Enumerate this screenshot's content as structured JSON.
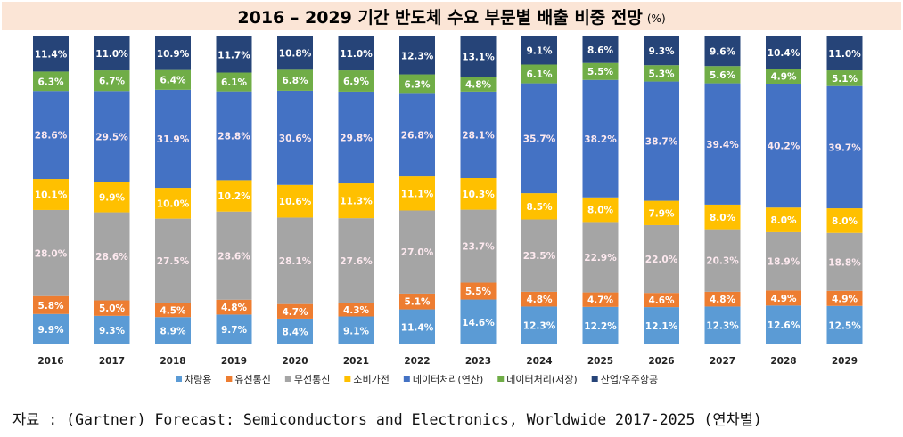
{
  "title": "2016 – 2029 기간 반도체 수요 부문별 배출 비중 전망",
  "unit": "(%)",
  "source": "자료 : (Gartner) Forecast: Semiconductors and Electronics, Worldwide 2017-2025 (연차별)",
  "chart_data": {
    "type": "bar",
    "stacked": "100%",
    "categories": [
      "2016",
      "2017",
      "2018",
      "2019",
      "2020",
      "2021",
      "2022",
      "2023",
      "2024",
      "2025",
      "2026",
      "2027",
      "2028",
      "2029"
    ],
    "series": [
      {
        "name": "차량용",
        "color": "#5b9bd5",
        "label_color": "#ffffff",
        "values": [
          9.9,
          9.3,
          8.9,
          9.7,
          8.4,
          9.1,
          11.4,
          14.6,
          12.3,
          12.2,
          12.1,
          12.3,
          12.6,
          12.5
        ]
      },
      {
        "name": "유선통신",
        "color": "#ed7d31",
        "label_color": "#ffffff",
        "values": [
          5.8,
          5.0,
          4.5,
          4.8,
          4.7,
          4.3,
          5.1,
          5.5,
          4.8,
          4.7,
          4.6,
          4.8,
          4.9,
          4.9
        ]
      },
      {
        "name": "무선통신",
        "color": "#a5a5a5",
        "label_color": "#fde9ef",
        "values": [
          28.0,
          28.6,
          27.5,
          28.6,
          28.1,
          27.6,
          27.0,
          23.7,
          23.5,
          22.9,
          22.0,
          20.3,
          18.9,
          18.8
        ]
      },
      {
        "name": "소비가전",
        "color": "#ffc000",
        "label_color": "#ffffff",
        "values": [
          10.1,
          9.9,
          10.0,
          10.2,
          10.6,
          11.3,
          11.1,
          10.3,
          8.5,
          8.0,
          7.9,
          8.0,
          8.0,
          8.0
        ]
      },
      {
        "name": "데이터처리(연산)",
        "color": "#4472c4",
        "label_color": "#fde9ef",
        "values": [
          28.6,
          29.5,
          31.9,
          28.8,
          30.6,
          29.8,
          26.8,
          28.1,
          35.7,
          38.2,
          38.7,
          39.4,
          40.2,
          39.7
        ]
      },
      {
        "name": "데이터처리(저장)",
        "color": "#70ad47",
        "label_color": "#ffffff",
        "values": [
          6.3,
          6.7,
          6.4,
          6.1,
          6.8,
          6.9,
          6.3,
          4.8,
          6.1,
          5.5,
          5.3,
          5.6,
          4.9,
          5.1
        ]
      },
      {
        "name": "산업/우주항공",
        "color": "#264478",
        "label_color": "#ffffff",
        "values": [
          11.4,
          11.0,
          10.9,
          11.7,
          10.8,
          11.0,
          12.3,
          13.1,
          9.1,
          8.6,
          9.3,
          9.6,
          10.4,
          11.0
        ]
      }
    ],
    "value_suffix": "%",
    "legend_position": "bottom",
    "grid": false
  }
}
